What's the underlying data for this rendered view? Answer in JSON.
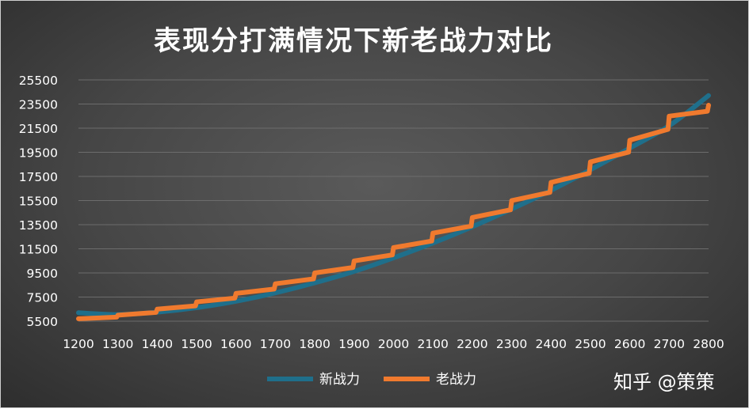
{
  "watermark": "知乎 @策策",
  "chart_data": {
    "type": "line",
    "title": "表现分打满情况下新老战力对比",
    "x": [
      1200,
      1300,
      1400,
      1500,
      1600,
      1700,
      1800,
      1900,
      2000,
      2100,
      2200,
      2300,
      2400,
      2500,
      2600,
      2700,
      2800
    ],
    "xlim": [
      1200,
      2800
    ],
    "ylim": [
      5500,
      25500
    ],
    "y_ticks": [
      5500,
      7500,
      9500,
      11500,
      13500,
      15500,
      17500,
      19500,
      21500,
      23500,
      25500
    ],
    "grid": true,
    "legend_position": "bottom",
    "series": [
      {
        "name": "新战力",
        "color": "#1f6f8b",
        "style": "smooth",
        "values": [
          6200,
          6050,
          6250,
          6620,
          7150,
          7850,
          8680,
          9630,
          10750,
          11980,
          13330,
          14800,
          16350,
          18050,
          19850,
          21700,
          24200
        ]
      },
      {
        "name": "老战力",
        "color": "#f07a2e",
        "style": "step",
        "values": [
          5700,
          6000,
          6500,
          7100,
          7800,
          8600,
          9500,
          10500,
          11600,
          12800,
          14100,
          15500,
          17000,
          18700,
          20500,
          22500,
          23400
        ]
      }
    ]
  }
}
